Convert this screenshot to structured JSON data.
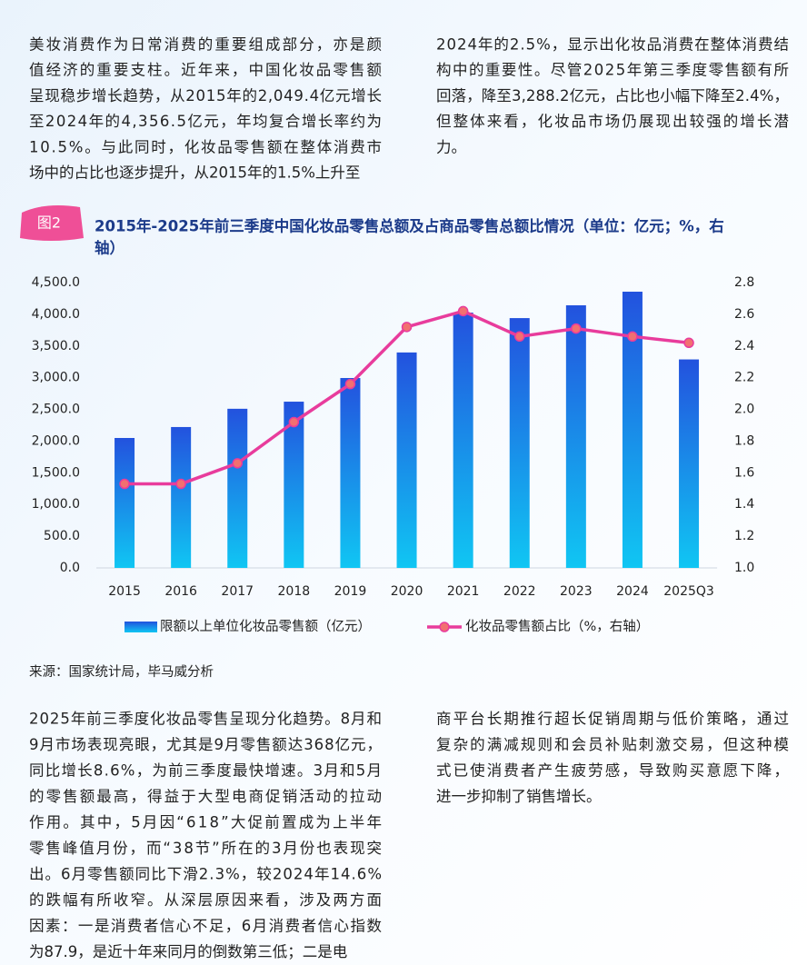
{
  "intro": {
    "left": [
      "美妆消费作为日常消费的重要组成部分，亦是颜",
      "值经济的重要支柱。近年来，中国化妆品零售额",
      "呈现稳步增长趋势，从2015年的2,049.4亿元增长",
      "至2024年的4,356.5亿元，年均复合增长率约为",
      "10.5%。与此同时，化妆品零售额在整体消费市",
      "场中的占比也逐步提升，从2015年的1.5%上升至"
    ],
    "right": [
      "2024年的2.5%，显示出化妆品消费在整体消费结",
      "构中的重要性。尽管2025年第三季度零售额有所",
      "回落，降至3,288.2亿元，占比也小幅下降至2.4%，",
      "但整体来看，化妆品市场仍展现出较强的增长潜",
      "力。"
    ]
  },
  "figure": {
    "label": "图2",
    "title_lines": [
      "2015年-2025年前三季度中国化妆品零售总额及占商品零售总额比情况（单位：亿元；%，右",
      "轴）"
    ]
  },
  "chart_data": {
    "type": "bar",
    "categories": [
      "2015",
      "2016",
      "2017",
      "2018",
      "2019",
      "2020",
      "2021",
      "2022",
      "2023",
      "2024",
      "2025Q3"
    ],
    "series": [
      {
        "name": "限额以上单位化妆品零售额（亿元）",
        "type": "bar",
        "color": "#2352de",
        "color_bottom": "#10c6f3",
        "values": [
          2049.4,
          2222,
          2510,
          2622,
          2995,
          3398,
          4027,
          3940,
          4142,
          4356.5,
          3288.2
        ]
      },
      {
        "name": "化妆品零售额占比（%，右轴）",
        "type": "line",
        "axis": "y2",
        "color": "#e83c9c",
        "marker_color": "#f27070",
        "values": [
          1.53,
          1.53,
          1.66,
          1.92,
          2.16,
          2.52,
          2.62,
          2.46,
          2.51,
          2.46,
          2.42
        ]
      }
    ],
    "ylim": [
      0,
      4500
    ],
    "yticks": [
      {
        "value": 0,
        "label": "0.0"
      },
      {
        "value": 500,
        "label": "500.0"
      },
      {
        "value": 1000,
        "label": "1,000.0"
      },
      {
        "value": 1500,
        "label": "1,500.0"
      },
      {
        "value": 2000,
        "label": "2,000.0"
      },
      {
        "value": 2500,
        "label": "2,500.0"
      },
      {
        "value": 3000,
        "label": "3,000.0"
      },
      {
        "value": 3500,
        "label": "3,500.0"
      },
      {
        "value": 4000,
        "label": "4,000.0"
      },
      {
        "value": 4500,
        "label": "4,500.0"
      }
    ],
    "y2lim": [
      1.0,
      2.8
    ],
    "y2ticks": [
      {
        "value": 1,
        "label": "1.0"
      },
      1.2,
      1.4,
      1.6,
      1.8,
      {
        "value": 2,
        "label": "2.0"
      },
      2.2,
      2.4,
      2.6,
      2.8
    ],
    "grid": false,
    "legend": "bottom"
  },
  "source": "来源：国家统计局，毕马威分析",
  "body": {
    "left": [
      "2025年前三季度化妆品零售呈现分化趋势。8月和",
      "9月市场表现亮眼，尤其是9月零售额达368亿元，",
      "同比增长8.6%，为前三季度最快增速。3月和5月",
      "的零售额最高，得益于大型电商促销活动的拉动",
      "作用。其中，5月因“618”大促前置成为上半年",
      "零售峰值月份，而“38节”所在的3月份也表现突",
      "出。6月零售额同比下滑2.3%，较2024年14.6%",
      "的跌幅有所收窄。从深层原因来看，涉及两方面",
      "因素：一是消费者信心不足，6月消费者信心指数",
      "为87.9，是近十年来同月的倒数第三低；二是电"
    ],
    "right": [
      "商平台长期推行超长促销周期与低价策略，通过",
      "复杂的满减规则和会员补贴刺激交易，但这种模",
      "式已使消费者产生疲劳感，导致购买意愿下降，",
      "进一步抑制了销售增长。"
    ]
  }
}
